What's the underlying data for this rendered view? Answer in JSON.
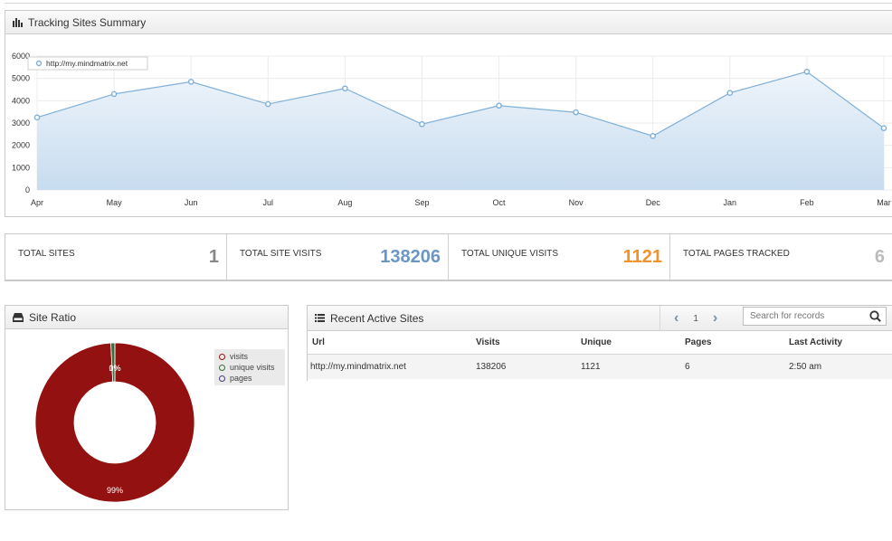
{
  "chart_panel": {
    "title": "Tracking Sites Summary"
  },
  "chart_data": {
    "type": "area",
    "series": [
      {
        "name": "http://my.mindmatrix.net",
        "values": [
          3250,
          4300,
          4850,
          3850,
          4550,
          2950,
          3780,
          3480,
          2420,
          4350,
          5300,
          2770
        ]
      }
    ],
    "categories": [
      "Apr",
      "May",
      "Jun",
      "Jul",
      "Aug",
      "Sep",
      "Oct",
      "Nov",
      "Dec",
      "Jan",
      "Feb",
      "Mar"
    ],
    "y_ticks": [
      "0",
      "1000",
      "2000",
      "3000",
      "4000",
      "5000",
      "6000"
    ],
    "ylim": [
      0,
      6000
    ],
    "grid": true,
    "legend_position": "top-left",
    "colors": {
      "line": "#7fb0d8",
      "fill_top": "#eef4fb",
      "fill_bottom": "#c7dcef"
    }
  },
  "stats": [
    {
      "label": "TOTAL SITES",
      "value": "1",
      "color": "#888888"
    },
    {
      "label": "TOTAL SITE VISITS",
      "value": "138206",
      "color": "#6b96c4"
    },
    {
      "label": "TOTAL UNIQUE VISITS",
      "value": "1121",
      "color": "#f0922e"
    },
    {
      "label": "TOTAL PAGES TRACKED",
      "value": "6",
      "color": "#bcbcbc"
    }
  ],
  "ratio_panel": {
    "title": "Site Ratio",
    "pie": {
      "type": "pie",
      "slices": [
        {
          "name": "visits",
          "value": 99.19,
          "label": "99%",
          "color": "#931211"
        },
        {
          "name": "unique visits",
          "value": 0.8,
          "label": "1%",
          "color": "#3a6e3a"
        },
        {
          "name": "pages",
          "value": 0.01,
          "label": "0%",
          "color": "#4a3d78"
        }
      ]
    },
    "legend": [
      {
        "label": "visits",
        "color": "#931211"
      },
      {
        "label": "unique visits",
        "color": "#3a6e3a"
      },
      {
        "label": "pages",
        "color": "#4a3d78"
      }
    ]
  },
  "recent_panel": {
    "title": "Recent Active Sites",
    "page": "1",
    "search_placeholder": "Search for records",
    "columns": [
      "Url",
      "Visits",
      "Unique",
      "Pages",
      "Last Activity"
    ],
    "rows": [
      [
        "http://my.mindmatrix.net",
        "138206",
        "1121",
        "6",
        "2:50 am"
      ]
    ]
  }
}
